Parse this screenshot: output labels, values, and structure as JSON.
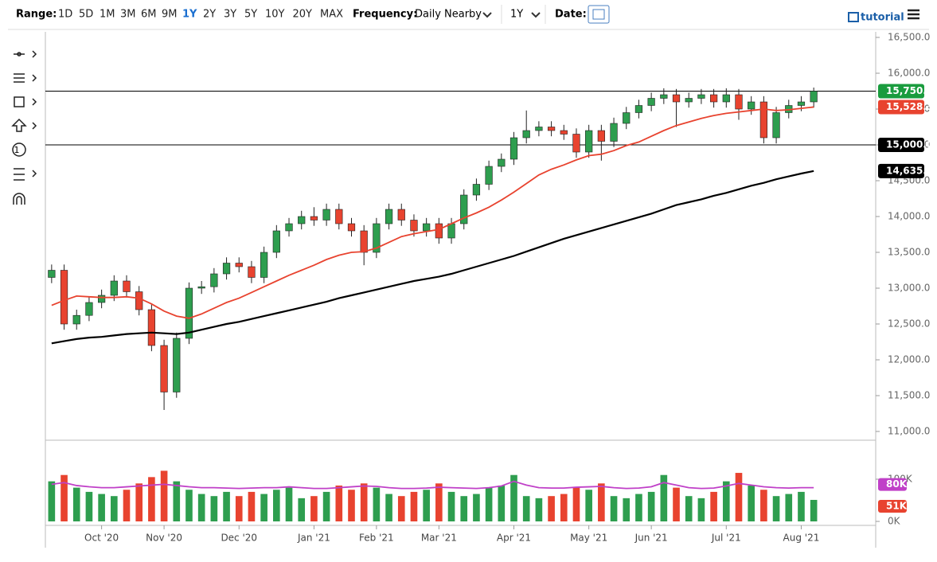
{
  "toolbar": {
    "range_label": "Range:",
    "ranges": [
      "1D",
      "5D",
      "1M",
      "3M",
      "6M",
      "9M",
      "1Y",
      "2Y",
      "3Y",
      "5Y",
      "10Y",
      "20Y",
      "MAX"
    ],
    "active_range": "1Y",
    "frequency_label": "Frequency:",
    "frequency": "Daily Nearby",
    "period": "1Y",
    "date_label": "Date:",
    "tutorial": "tutorial"
  },
  "chart_data": {
    "type": "candlestick",
    "categories": [
      null,
      null,
      null,
      null,
      "Oct '20",
      null,
      null,
      null,
      null,
      "Nov '20",
      null,
      null,
      null,
      null,
      null,
      "Dec '20",
      null,
      null,
      null,
      null,
      null,
      "Jan '21",
      null,
      null,
      null,
      null,
      "Feb '21",
      null,
      null,
      null,
      null,
      "Mar '21",
      null,
      null,
      null,
      null,
      null,
      "Apr '21",
      null,
      null,
      null,
      null,
      null,
      "May '21",
      null,
      null,
      null,
      null,
      "Jun '21",
      null,
      null,
      null,
      null,
      null,
      "Jul '21",
      null,
      null,
      null,
      null,
      null,
      "Aug '21",
      null
    ],
    "open": [
      13150,
      13250,
      12500,
      12620,
      12800,
      12900,
      13100,
      12950,
      12700,
      12200,
      11550,
      12300,
      13000,
      13020,
      13200,
      13350,
      13300,
      13150,
      13500,
      13800,
      13900,
      14000,
      13950,
      14100,
      13900,
      13800,
      13500,
      13900,
      14100,
      13950,
      13800,
      13900,
      13700,
      13900,
      14300,
      14450,
      14700,
      14800,
      15100,
      15200,
      15250,
      15200,
      15150,
      14900,
      15200,
      15050,
      15300,
      15450,
      15550,
      15650,
      15700,
      15600,
      15650,
      15700,
      15600,
      15700,
      15500,
      15600,
      15100,
      15450,
      15550,
      15600
    ],
    "high": [
      13330,
      13330,
      12700,
      12880,
      12980,
      13180,
      13180,
      13030,
      12780,
      12280,
      12380,
      13080,
      13100,
      13280,
      13430,
      13430,
      13380,
      13580,
      13880,
      13980,
      14080,
      14130,
      14180,
      14180,
      13980,
      13880,
      13980,
      14180,
      14180,
      14030,
      13980,
      13980,
      13980,
      14380,
      14530,
      14780,
      14880,
      15180,
      15480,
      15330,
      15330,
      15280,
      15230,
      15280,
      15280,
      15380,
      15530,
      15630,
      15730,
      15790,
      15780,
      15730,
      15780,
      15780,
      15790,
      15780,
      15680,
      15680,
      15530,
      15630,
      15680,
      15800
    ],
    "low": [
      13070,
      12420,
      12420,
      12540,
      12720,
      12820,
      12870,
      12620,
      12120,
      11300,
      11470,
      12220,
      12920,
      12940,
      13120,
      13220,
      13070,
      13070,
      13420,
      13720,
      13820,
      13870,
      13870,
      13820,
      13720,
      13320,
      13420,
      13820,
      13870,
      13720,
      13720,
      13620,
      13620,
      13820,
      14220,
      14370,
      14620,
      14720,
      15020,
      15120,
      15120,
      15070,
      14820,
      14820,
      14780,
      14970,
      15220,
      15370,
      15470,
      15570,
      15250,
      15520,
      15570,
      15520,
      15520,
      15350,
      15420,
      15020,
      15020,
      15370,
      15470,
      15520
    ],
    "close": [
      13250,
      12500,
      12620,
      12800,
      12900,
      13100,
      12950,
      12700,
      12200,
      11550,
      12300,
      13000,
      13020,
      13200,
      13350,
      13300,
      13150,
      13500,
      13800,
      13900,
      14000,
      13950,
      14100,
      13900,
      13800,
      13500,
      13900,
      14100,
      13950,
      13800,
      13900,
      13700,
      13900,
      14300,
      14450,
      14700,
      14800,
      15100,
      15200,
      15250,
      15200,
      15150,
      14900,
      15200,
      15050,
      15300,
      15450,
      15550,
      15650,
      15700,
      15600,
      15650,
      15700,
      15600,
      15700,
      15500,
      15600,
      15100,
      15450,
      15550,
      15600,
      15750
    ],
    "up_color": "#2e9e4f",
    "down_color": "#e8432f",
    "series": [
      {
        "color": "#e8432f",
        "values": [
          12760,
          12830,
          12890,
          12880,
          12870,
          12870,
          12880,
          12860,
          12780,
          12680,
          12610,
          12580,
          12640,
          12720,
          12800,
          12860,
          12940,
          13020,
          13100,
          13180,
          13250,
          13320,
          13400,
          13460,
          13500,
          13510,
          13560,
          13640,
          13720,
          13760,
          13790,
          13820,
          13900,
          13980,
          14050,
          14130,
          14230,
          14340,
          14460,
          14580,
          14660,
          14720,
          14790,
          14850,
          14870,
          14920,
          14990,
          15040,
          15120,
          15200,
          15270,
          15320,
          15370,
          15410,
          15440,
          15460,
          15480,
          15500,
          15480,
          15490,
          15510,
          15528.3
        ]
      },
      {
        "color": "#000000",
        "values": [
          12230,
          12260,
          12290,
          12310,
          12320,
          12340,
          12360,
          12370,
          12380,
          12370,
          12360,
          12380,
          12420,
          12460,
          12500,
          12530,
          12570,
          12610,
          12650,
          12690,
          12730,
          12770,
          12810,
          12860,
          12900,
          12940,
          12980,
          13020,
          13060,
          13100,
          13130,
          13160,
          13200,
          13250,
          13300,
          13350,
          13400,
          13450,
          13510,
          13570,
          13630,
          13690,
          13740,
          13790,
          13840,
          13890,
          13940,
          13990,
          14040,
          14100,
          14160,
          14200,
          14240,
          14290,
          14330,
          14380,
          14430,
          14470,
          14520,
          14560,
          14600,
          14635.1
        ]
      }
    ],
    "hlines": [
      15750,
      15000
    ],
    "price_badges": [
      {
        "value": 15750,
        "label": "15,750.0",
        "color": "#1a9c3e"
      },
      {
        "value": 15528.3,
        "label": "15,528.3",
        "color": "#e8432f"
      },
      {
        "value": 15000,
        "label": "15,000.0",
        "color": "#000000"
      },
      {
        "value": 14635.1,
        "label": "14,635.1",
        "color": "#000000"
      }
    ],
    "ylim": [
      11000,
      16500
    ],
    "yticks": [
      {
        "value": 11000,
        "label": "11,000.0"
      },
      {
        "value": 11500,
        "label": "11,500.0"
      },
      {
        "value": 12000,
        "label": "12,000.0"
      },
      {
        "value": 12500,
        "label": "12,500.0"
      },
      {
        "value": 13000,
        "label": "13,000.0"
      },
      {
        "value": 13500,
        "label": "13,500.0"
      },
      {
        "value": 14000,
        "label": "14,000.0"
      },
      {
        "value": 14500,
        "label": "14,500.0"
      },
      {
        "value": 15000,
        "label": "15,000.0"
      },
      {
        "value": 15500,
        "label": "15,500.0"
      },
      {
        "value": 16000,
        "label": "16,000.0"
      },
      {
        "value": 16500,
        "label": "16,500.0"
      }
    ],
    "volume": [
      95000,
      110000,
      80000,
      70000,
      65000,
      60000,
      75000,
      90000,
      105000,
      120000,
      95000,
      75000,
      65000,
      60000,
      70000,
      60000,
      70000,
      65000,
      75000,
      80000,
      55000,
      60000,
      70000,
      85000,
      75000,
      90000,
      80000,
      65000,
      60000,
      70000,
      75000,
      90000,
      70000,
      60000,
      65000,
      80000,
      85000,
      110000,
      60000,
      55000,
      60000,
      65000,
      80000,
      75000,
      90000,
      60000,
      55000,
      65000,
      70000,
      110000,
      80000,
      60000,
      55000,
      70000,
      95000,
      115000,
      85000,
      75000,
      60000,
      65000,
      70000,
      51000
    ],
    "volume_ma": {
      "color": "#c040c8",
      "values": [
        88000,
        92000,
        85000,
        82000,
        80000,
        80000,
        82000,
        84000,
        86000,
        88000,
        85000,
        82000,
        80000,
        80000,
        79000,
        78000,
        79000,
        80000,
        80000,
        82000,
        80000,
        78000,
        78000,
        80000,
        82000,
        84000,
        83000,
        80000,
        78000,
        78000,
        79000,
        81000,
        80000,
        79000,
        78000,
        80000,
        84000,
        95000,
        86000,
        80000,
        79000,
        79000,
        81000,
        82000,
        83000,
        80000,
        78000,
        79000,
        82000,
        92000,
        86000,
        80000,
        78000,
        79000,
        84000,
        90000,
        86000,
        82000,
        80000,
        79000,
        80000,
        80000
      ]
    },
    "volume_badges": [
      {
        "value": 80000,
        "label": "80K",
        "color": "#c040c8"
      },
      {
        "value": 51000,
        "label": "51K",
        "color": "#e8432f"
      }
    ],
    "vlim": [
      0,
      190000
    ],
    "vticks": [
      {
        "value": 0,
        "label": "0K"
      },
      {
        "value": 100000,
        "label": "100K"
      }
    ]
  }
}
